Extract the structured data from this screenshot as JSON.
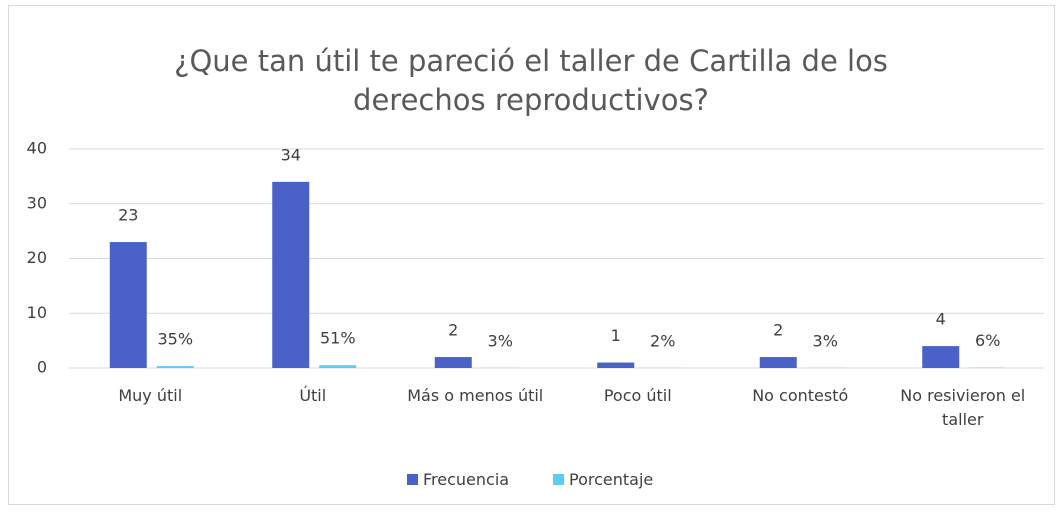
{
  "chart_data": {
    "type": "bar",
    "title": "¿Que tan útil te pareció el taller de Cartilla de los derechos reproductivos?",
    "categories": [
      "Muy útil",
      "Útil",
      "Más o menos útil",
      "Poco útil",
      "No contestó",
      "No resivieron el taller"
    ],
    "series": [
      {
        "name": "Frecuencia",
        "color": "#4a62c8",
        "values": [
          23,
          34,
          2,
          1,
          2,
          4
        ]
      },
      {
        "name": "Porcentaje",
        "color": "#5ecbf0",
        "values": [
          0.35,
          0.51,
          0.03,
          0.02,
          0.03,
          0.06
        ],
        "value_labels": [
          "35%",
          "51%",
          "3%",
          "2%",
          "3%",
          "6%"
        ]
      }
    ],
    "ylim": [
      0,
      40
    ],
    "yticks": [
      0,
      10,
      20,
      30,
      40
    ],
    "grid": true,
    "legend": "bottom"
  }
}
